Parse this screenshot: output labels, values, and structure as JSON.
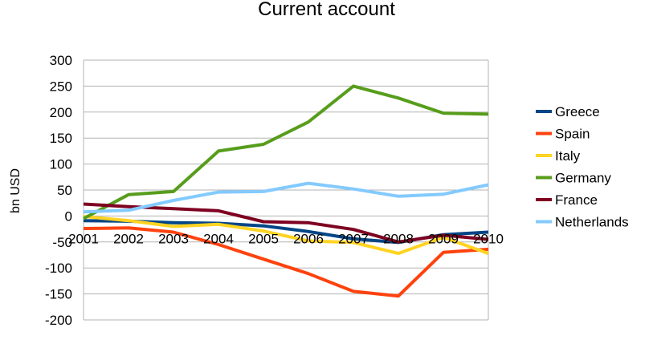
{
  "chart_data": {
    "type": "line",
    "title": "Current account",
    "xlabel": "",
    "ylabel": "bn USD",
    "ylim": [
      -200,
      300
    ],
    "yticks": [
      300,
      250,
      200,
      150,
      100,
      50,
      0,
      -50,
      -100,
      -150,
      -200
    ],
    "grid": true,
    "legend_position": "right",
    "categories": [
      "2001",
      "2002",
      "2003",
      "2004",
      "2005",
      "2006",
      "2007",
      "2008",
      "2009",
      "2010"
    ],
    "series": [
      {
        "name": "Greece",
        "color": "#004586",
        "values": [
          -9,
          -10,
          -13,
          -14,
          -19,
          -30,
          -44,
          -51,
          -36,
          -31
        ]
      },
      {
        "name": "Spain",
        "color": "#ff420e",
        "values": [
          -24,
          -23,
          -31,
          -55,
          -83,
          -111,
          -145,
          -154,
          -70,
          -64
        ]
      },
      {
        "name": "Italy",
        "color": "#ffd320",
        "values": [
          -1,
          -9,
          -20,
          -16,
          -29,
          -48,
          -51,
          -72,
          -41,
          -72
        ]
      },
      {
        "name": "Germany",
        "color": "#579d1c",
        "values": [
          -5,
          41,
          47,
          125,
          138,
          181,
          250,
          227,
          198,
          196
        ]
      },
      {
        "name": "France",
        "color": "#7e0021",
        "values": [
          23,
          18,
          14,
          10,
          -11,
          -13,
          -26,
          -50,
          -37,
          -45
        ]
      },
      {
        "name": "Netherlands",
        "color": "#83caff",
        "values": [
          8,
          11,
          30,
          46,
          47,
          63,
          52,
          38,
          42,
          60
        ]
      }
    ]
  }
}
